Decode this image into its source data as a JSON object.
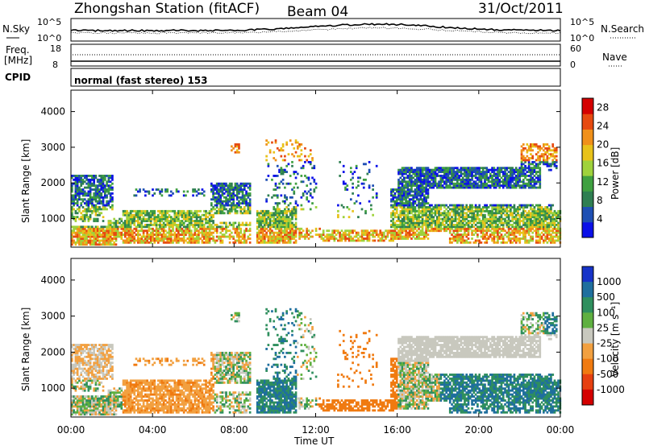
{
  "header": {
    "title": "Zhongshan Station (fitACF)",
    "beam": "Beam 04",
    "date": "31/Oct/2011"
  },
  "noise_panel": {
    "left_label": "N.Sky",
    "right_label": "N.Search",
    "left_ticks": [
      "10^5",
      "10^0"
    ],
    "right_ticks": [
      "10^5",
      "10^0"
    ]
  },
  "freq_panel": {
    "left_label_line1": "Freq.",
    "left_label_line2": "[MHz]",
    "left_ticks": [
      "18",
      "8"
    ],
    "right_ticks": [
      "60",
      "0"
    ],
    "right_label": "Nave"
  },
  "cpid_panel": {
    "label": "CPID",
    "text": "normal (fast stereo) 153"
  },
  "chart_data": [
    {
      "type": "heatmap",
      "name": "power",
      "ylabel": "Slant Range [km]",
      "ylim": [
        200,
        4600
      ],
      "yticks": [
        1000,
        2000,
        3000,
        4000
      ],
      "xlim": [
        0,
        24
      ],
      "colorbar_label": "Power [dB]",
      "colorbar_ticks": [
        4,
        8,
        12,
        16,
        20,
        24,
        28
      ],
      "colorbar_range": [
        0,
        30
      ],
      "colors": [
        "#0b10e8",
        "#1e4fb3",
        "#2f7f52",
        "#3fa040",
        "#9fd23c",
        "#e8c21a",
        "#f0901a",
        "#e64a10",
        "#d40000"
      ]
    },
    {
      "type": "heatmap",
      "name": "velocity",
      "ylabel": "Slant Range [km]",
      "ylim": [
        200,
        4600
      ],
      "yticks": [
        1000,
        2000,
        3000,
        4000
      ],
      "xlim": [
        0,
        24
      ],
      "xlabel": "Time UT",
      "xticks": [
        "00:00",
        "04:00",
        "08:00",
        "12:00",
        "16:00",
        "20:00",
        "00:00"
      ],
      "colorbar_label": "Velocity [m s⁻¹]",
      "colorbar_ticks": [
        "1000",
        "500",
        "100",
        "25",
        "-25",
        "-100",
        "-500",
        "-1000"
      ],
      "colors": [
        "#1633c8",
        "#1f6f9e",
        "#2f8f5e",
        "#5fb040",
        "#c8c8be",
        "#f2a040",
        "#f07a10",
        "#e64010",
        "#d40000"
      ]
    }
  ]
}
